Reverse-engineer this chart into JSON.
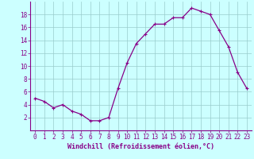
{
  "x": [
    0,
    1,
    2,
    3,
    4,
    5,
    6,
    7,
    8,
    9,
    10,
    11,
    12,
    13,
    14,
    15,
    16,
    17,
    18,
    19,
    20,
    21,
    22,
    23
  ],
  "y": [
    5.0,
    4.5,
    3.5,
    4.0,
    3.0,
    2.5,
    1.5,
    1.5,
    2.0,
    6.5,
    10.5,
    13.5,
    15.0,
    16.5,
    16.5,
    17.5,
    17.5,
    19.0,
    18.5,
    18.0,
    15.5,
    13.0,
    9.0,
    6.5
  ],
  "line_color": "#880088",
  "marker": "+",
  "marker_size": 3,
  "marker_linewidth": 0.8,
  "line_width": 0.9,
  "bg_color": "#ccffff",
  "grid_color": "#99cccc",
  "xlabel": "Windchill (Refroidissement éolien,°C)",
  "xlabel_fontsize": 6.0,
  "tick_fontsize": 5.5,
  "ylim": [
    0,
    20
  ],
  "yticks": [
    2,
    4,
    6,
    8,
    10,
    12,
    14,
    16,
    18
  ],
  "xlim": [
    -0.5,
    23.5
  ],
  "xticks": [
    0,
    1,
    2,
    3,
    4,
    5,
    6,
    7,
    8,
    9,
    10,
    11,
    12,
    13,
    14,
    15,
    16,
    17,
    18,
    19,
    20,
    21,
    22,
    23
  ]
}
